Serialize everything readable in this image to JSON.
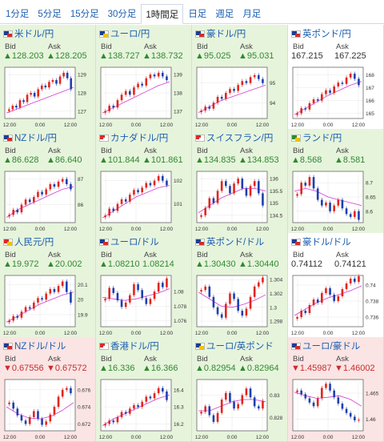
{
  "tabs": [
    {
      "label": "1分足",
      "active": false
    },
    {
      "label": "5分足",
      "active": false
    },
    {
      "label": "15分足",
      "active": false
    },
    {
      "label": "30分足",
      "active": false
    },
    {
      "label": "1時間足",
      "active": true
    },
    {
      "label": "日足",
      "active": false
    },
    {
      "label": "週足",
      "active": false
    },
    {
      "label": "月足",
      "active": false
    }
  ],
  "labels": {
    "bid": "Bid",
    "ask": "Ask"
  },
  "pairs": [
    {
      "name": "米ドル/円",
      "trend": "up",
      "bid": "▲128.203",
      "ask": "▲128.205",
      "flag": [
        "#1a3f8f",
        "#d62b2b"
      ],
      "chart_data": {
        "type": "candlestick",
        "x_ticks": [
          "12:00",
          "0:00",
          "12:00"
        ],
        "y_ticks": [
          "129",
          "128",
          "127"
        ],
        "ylim": [
          126.6,
          129.4
        ],
        "close": [
          127.1,
          127.3,
          127.2,
          127.6,
          127.5,
          127.9,
          128.0,
          127.8,
          128.2,
          128.4,
          128.3,
          128.6,
          128.7,
          128.5,
          128.9,
          129.1,
          128.8,
          128.2
        ],
        "ma": [
          126.9,
          127.1,
          127.3,
          127.5,
          127.7,
          127.9,
          128.1,
          128.3
        ]
      }
    },
    {
      "name": "ユーロ/円",
      "trend": "up",
      "bid": "▲138.727",
      "ask": "▲138.732",
      "flag": [
        "#1a3f8f",
        "#f2c200"
      ],
      "chart_data": {
        "type": "candlestick",
        "x_ticks": [
          "12:00",
          "0:00",
          "12:00"
        ],
        "y_ticks": [
          "139",
          "138",
          "137"
        ],
        "ylim": [
          136.6,
          139.4
        ],
        "close": [
          137.0,
          137.3,
          137.2,
          137.6,
          137.9,
          138.1,
          137.9,
          138.3,
          138.5,
          138.4,
          138.8,
          139.0,
          138.9,
          139.1,
          138.9,
          138.7
        ],
        "ma": [
          136.9,
          137.2,
          137.5,
          137.8,
          138.1,
          138.4,
          138.6
        ]
      }
    },
    {
      "name": "豪ドル/円",
      "trend": "up",
      "bid": "▲95.025",
      "ask": "▲95.031",
      "flag": [
        "#1a3f8f",
        "#d62b2b"
      ],
      "chart_data": {
        "type": "candlestick",
        "x_ticks": [
          "12:00",
          "0:00",
          "12:00"
        ],
        "y_ticks": [
          "95",
          "94"
        ],
        "ylim": [
          93.2,
          95.8
        ],
        "close": [
          93.6,
          93.8,
          93.7,
          94.0,
          94.3,
          94.2,
          94.5,
          94.7,
          94.6,
          94.9,
          95.1,
          95.0,
          95.3,
          95.4,
          95.2,
          95.0
        ],
        "ma": [
          93.5,
          93.8,
          94.1,
          94.3,
          94.5,
          94.7,
          94.9
        ]
      }
    },
    {
      "name": "英ポンド/円",
      "trend": "flat",
      "bid": "167.215",
      "ask": "167.225",
      "flag": [
        "#1a3f8f",
        "#d62b2b"
      ],
      "chart_data": {
        "type": "candlestick",
        "x_ticks": [
          "12:00",
          "0:00",
          "12:00"
        ],
        "y_ticks": [
          "168",
          "167",
          "166",
          "165"
        ],
        "ylim": [
          164.6,
          168.6
        ],
        "close": [
          165.0,
          165.4,
          165.3,
          165.8,
          166.1,
          166.0,
          166.5,
          166.8,
          166.6,
          167.1,
          167.4,
          167.3,
          167.8,
          168.1,
          167.7,
          167.2
        ],
        "ma": [
          164.9,
          165.4,
          165.9,
          166.4,
          166.8,
          167.2,
          167.5
        ]
      }
    },
    {
      "name": "NZドル/円",
      "trend": "up",
      "bid": "▲86.628",
      "ask": "▲86.640",
      "flag": [
        "#1a3f8f",
        "#d62b2b"
      ],
      "chart_data": {
        "type": "candlestick",
        "x_ticks": [
          "12:00",
          "0:00",
          "12:00"
        ],
        "y_ticks": [
          "87",
          "86"
        ],
        "ylim": [
          85.3,
          87.3
        ],
        "close": [
          85.6,
          85.8,
          85.7,
          86.0,
          86.2,
          86.1,
          86.3,
          86.5,
          86.4,
          86.6,
          86.8,
          86.7,
          86.9,
          87.0,
          86.8,
          86.6
        ],
        "ma": [
          85.5,
          85.8,
          86.0,
          86.2,
          86.4,
          86.6,
          86.7
        ]
      }
    },
    {
      "name": "カナダドル/円",
      "trend": "up",
      "bid": "▲101.844",
      "ask": "▲101.861",
      "flag": [
        "#d62b2b",
        "#ffffff"
      ],
      "chart_data": {
        "type": "candlestick",
        "x_ticks": [
          "12:00",
          "0:00",
          "12:00"
        ],
        "y_ticks": [
          "102",
          "101"
        ],
        "ylim": [
          100.2,
          102.4
        ],
        "close": [
          100.5,
          100.8,
          100.7,
          101.0,
          101.2,
          101.1,
          101.4,
          101.6,
          101.5,
          101.7,
          101.9,
          101.8,
          102.0,
          102.2,
          102.0,
          101.8
        ],
        "ma": [
          100.4,
          100.7,
          101.0,
          101.3,
          101.5,
          101.7,
          101.8
        ]
      }
    },
    {
      "name": "スイスフラン/円",
      "trend": "up",
      "bid": "▲134.835",
      "ask": "▲134.853",
      "flag": [
        "#d62b2b",
        "#ffffff"
      ],
      "chart_data": {
        "type": "candlestick",
        "x_ticks": [
          "12:00",
          "0:00",
          "12:00"
        ],
        "y_ticks": [
          "136",
          "135.5",
          "135",
          "134.5"
        ],
        "ylim": [
          134.2,
          136.3
        ],
        "close": [
          134.5,
          134.8,
          135.2,
          135.0,
          135.5,
          135.9,
          135.7,
          135.4,
          135.8,
          136.0,
          135.6,
          135.3,
          135.7,
          135.9,
          135.4,
          134.9
        ],
        "ma": [
          134.6,
          134.9,
          135.2,
          135.4,
          135.6,
          135.6,
          135.5
        ]
      }
    },
    {
      "name": "ランド/円",
      "trend": "up",
      "bid": "▲8.568",
      "ask": "▲8.581",
      "flag": [
        "#2f8a2f",
        "#f2c200"
      ],
      "chart_data": {
        "type": "candlestick",
        "x_ticks": [
          "12:00",
          "0:00",
          "12:00"
        ],
        "y_ticks": [
          "8.7",
          "8.65",
          "8.6"
        ],
        "ylim": [
          8.56,
          8.74
        ],
        "close": [
          8.66,
          8.7,
          8.69,
          8.72,
          8.68,
          8.64,
          8.62,
          8.63,
          8.6,
          8.62,
          8.64,
          8.61,
          8.59,
          8.58,
          8.6,
          8.57
        ],
        "ma": [
          8.67,
          8.68,
          8.67,
          8.65,
          8.64,
          8.63,
          8.62
        ]
      }
    },
    {
      "name": "人民元/円",
      "trend": "up",
      "bid": "▲19.972",
      "ask": "▲20.002",
      "flag": [
        "#d62b2b",
        "#f2c200"
      ],
      "chart_data": {
        "type": "candlestick",
        "x_ticks": [
          "12:00",
          "0:00",
          "12:00"
        ],
        "y_ticks": [
          "20.1",
          "20",
          "19.9"
        ],
        "ylim": [
          19.82,
          20.16
        ],
        "close": [
          19.86,
          19.89,
          19.88,
          19.92,
          19.95,
          19.94,
          19.98,
          20.01,
          20.0,
          20.04,
          20.07,
          20.05,
          20.09,
          20.12,
          20.05,
          19.98
        ],
        "ma": [
          19.85,
          19.89,
          19.93,
          19.97,
          20.0,
          20.03,
          20.05
        ]
      }
    },
    {
      "name": "ユーロ/ドル",
      "trend": "up",
      "bid": "▲1.08210",
      "ask": "1.08214",
      "flag": [
        "#1a3f8f",
        "#d62b2b"
      ],
      "chart_data": {
        "type": "candlestick",
        "x_ticks": [
          "12:00",
          "0:00",
          "12:00"
        ],
        "y_ticks": [
          "1.08",
          "1.078",
          "1.076"
        ],
        "ylim": [
          1.0752,
          1.0822
        ],
        "close": [
          1.079,
          1.0805,
          1.0798,
          1.0788,
          1.0779,
          1.0785,
          1.0795,
          1.081,
          1.0802,
          1.0791,
          1.0783,
          1.079,
          1.08,
          1.0812,
          1.0806,
          1.0818
        ],
        "ma": [
          1.0792,
          1.079,
          1.0788,
          1.079,
          1.0794,
          1.0798,
          1.0804
        ]
      }
    },
    {
      "name": "英ポンド/ドル",
      "trend": "up",
      "bid": "▲1.30430",
      "ask": "▲1.30440",
      "flag": [
        "#1a3f8f",
        "#d62b2b"
      ],
      "chart_data": {
        "type": "candlestick",
        "x_ticks": [
          "12:00",
          "0:00",
          "12:00"
        ],
        "y_ticks": [
          "1.304",
          "1.302",
          "1.3",
          "1.298"
        ],
        "ylim": [
          1.2972,
          1.3046
        ],
        "close": [
          1.3025,
          1.303,
          1.3015,
          1.3,
          1.299,
          1.2985,
          1.3005,
          1.302,
          1.3012,
          1.2995,
          1.2988,
          1.2998,
          1.3015,
          1.303,
          1.3036,
          1.3043
        ],
        "ma": [
          1.3022,
          1.3012,
          1.3002,
          1.3,
          1.3004,
          1.301,
          1.3018
        ]
      }
    },
    {
      "name": "豪ドル/ドル",
      "trend": "flat",
      "bid": "0.74112",
      "ask": "0.74121",
      "flag": [
        "#1a3f8f",
        "#d62b2b"
      ],
      "chart_data": {
        "type": "candlestick",
        "x_ticks": [
          "12:00",
          "0:00",
          "12:00"
        ],
        "y_ticks": [
          "0.74",
          "0.738",
          "0.736"
        ],
        "ylim": [
          0.7348,
          0.7412
        ],
        "close": [
          0.736,
          0.7368,
          0.7365,
          0.7375,
          0.7382,
          0.7378,
          0.739,
          0.7396,
          0.7388,
          0.738,
          0.7386,
          0.7395,
          0.7402,
          0.7408,
          0.7404,
          0.7411
        ],
        "ma": [
          0.7362,
          0.737,
          0.7378,
          0.7384,
          0.7388,
          0.7393,
          0.7399
        ]
      }
    },
    {
      "name": "NZドル/ドル",
      "trend": "down",
      "bid": "▼0.67556",
      "ask": "▼0.67572",
      "flag": [
        "#1a3f8f",
        "#d62b2b"
      ],
      "chart_data": {
        "type": "candlestick",
        "x_ticks": [
          "12:00",
          "0:00",
          "12:00"
        ],
        "y_ticks": [
          "0.676",
          "0.674",
          "0.672"
        ],
        "ylim": [
          0.6712,
          0.6772
        ],
        "close": [
          0.6745,
          0.6738,
          0.673,
          0.6724,
          0.672,
          0.6728,
          0.6735,
          0.6726,
          0.6719,
          0.6723,
          0.6731,
          0.674,
          0.6752,
          0.676,
          0.6762,
          0.6756
        ],
        "ma": [
          0.674,
          0.6732,
          0.6727,
          0.6726,
          0.6729,
          0.6736,
          0.6745
        ]
      }
    },
    {
      "name": "香港ドル/円",
      "trend": "up",
      "bid": "▲16.336",
      "ask": "▲16.366",
      "flag": [
        "#d62b2b",
        "#ffffff"
      ],
      "chart_data": {
        "type": "candlestick",
        "x_ticks": [
          "12:00",
          "0:00",
          "12:00"
        ],
        "y_ticks": [
          "16.4",
          "16.3",
          "16.2"
        ],
        "ylim": [
          16.16,
          16.46
        ],
        "close": [
          16.2,
          16.22,
          16.21,
          16.24,
          16.27,
          16.26,
          16.29,
          16.31,
          16.3,
          16.33,
          16.36,
          16.35,
          16.38,
          16.41,
          16.39,
          16.34
        ],
        "ma": [
          16.19,
          16.23,
          16.26,
          16.29,
          16.32,
          16.35,
          16.37
        ]
      }
    },
    {
      "name": "ユーロ/英ポンド",
      "trend": "up",
      "bid": "▲0.82954",
      "ask": "▲0.82964",
      "flag": [
        "#1a3f8f",
        "#f2c200"
      ],
      "chart_data": {
        "type": "candlestick",
        "x_ticks": [
          "12:00",
          "0:00",
          "12:00"
        ],
        "y_ticks": [
          "0.83",
          "0.828"
        ],
        "ylim": [
          0.8268,
          0.8314
        ],
        "close": [
          0.8285,
          0.829,
          0.8282,
          0.8276,
          0.8284,
          0.8296,
          0.8302,
          0.8294,
          0.8288,
          0.8292,
          0.83,
          0.8306,
          0.8298,
          0.829,
          0.8288,
          0.8295
        ],
        "ma": [
          0.8286,
          0.8286,
          0.829,
          0.8294,
          0.8296,
          0.8296,
          0.8294
        ]
      }
    },
    {
      "name": "ユーロ/豪ドル",
      "trend": "down",
      "bid": "▼1.45987",
      "ask": "▼1.46002",
      "flag": [
        "#1a3f8f",
        "#d62b2b"
      ],
      "chart_data": {
        "type": "candlestick",
        "x_ticks": [
          "12:00",
          "0:00",
          "12:00"
        ],
        "y_ticks": [
          "1.465",
          "1.46"
        ],
        "ylim": [
          1.4578,
          1.4676
        ],
        "close": [
          1.4655,
          1.4648,
          1.464,
          1.4632,
          1.4625,
          1.464,
          1.466,
          1.4668,
          1.4655,
          1.4642,
          1.463,
          1.462,
          1.4612,
          1.4605,
          1.4598,
          1.4599
        ],
        "ma": [
          1.4652,
          1.4645,
          1.464,
          1.4642,
          1.4645,
          1.4638,
          1.4625
        ]
      }
    }
  ]
}
